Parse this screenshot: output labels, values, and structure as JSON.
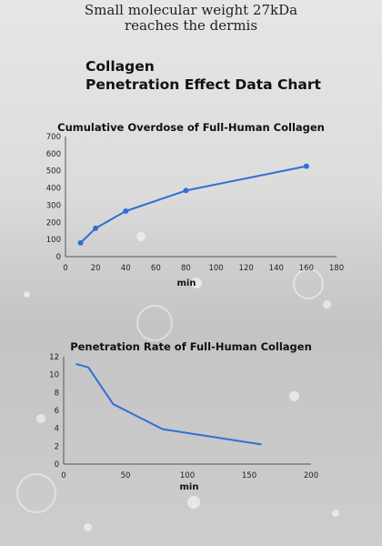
{
  "header": {
    "line1": "Small molecular weight 27kDa",
    "line2": "reaches the dermis"
  },
  "title": {
    "line1": "Collagen",
    "line2": "Penetration Effect Data Chart"
  },
  "chart_data": [
    {
      "type": "line",
      "title": "Cumulative Overdose of Full-Human Collagen",
      "xlabel": "min",
      "ylabel": "",
      "x": [
        10,
        20,
        40,
        80,
        160
      ],
      "series": [
        {
          "values": [
            80,
            165,
            265,
            385,
            527
          ]
        }
      ],
      "xlim": [
        0,
        180
      ],
      "ylim": [
        0,
        700
      ],
      "xticks": [
        0,
        20,
        40,
        60,
        80,
        100,
        120,
        140,
        160,
        180
      ],
      "yticks": [
        0,
        100,
        200,
        300,
        400,
        500,
        600,
        700
      ],
      "markers": true,
      "color": "#2f6fd6",
      "grid": false
    },
    {
      "type": "line",
      "title": "Penetration Rate of Full-Human Collagen",
      "xlabel": "min",
      "ylabel": "",
      "x": [
        10,
        20,
        40,
        80,
        160
      ],
      "series": [
        {
          "values": [
            11.2,
            10.8,
            6.7,
            3.9,
            2.2
          ]
        }
      ],
      "xlim": [
        0,
        200
      ],
      "ylim": [
        0,
        12
      ],
      "xticks": [
        0,
        50,
        100,
        150,
        200
      ],
      "yticks": [
        0,
        2,
        4,
        6,
        8,
        10,
        12
      ],
      "markers": false,
      "color": "#2f6fd6",
      "grid": false
    }
  ]
}
